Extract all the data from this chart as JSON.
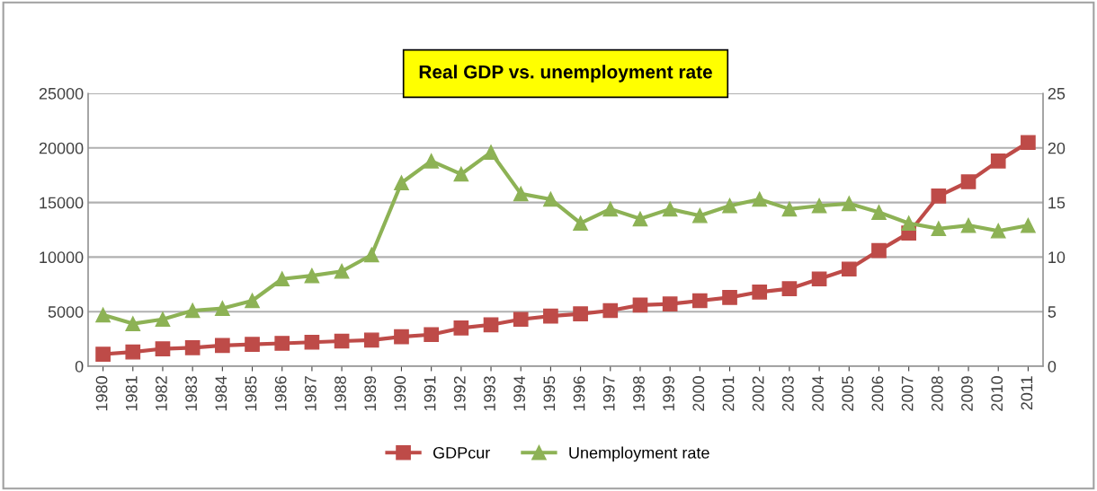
{
  "chart_data": {
    "type": "line",
    "title": "Real GDP vs. unemployment rate",
    "categories": [
      "1980",
      "1981",
      "1982",
      "1983",
      "1984",
      "1985",
      "1986",
      "1987",
      "1988",
      "1989",
      "1990",
      "1991",
      "1992",
      "1993",
      "1994",
      "1995",
      "1996",
      "1997",
      "1998",
      "1999",
      "2000",
      "2001",
      "2002",
      "2003",
      "2004",
      "2005",
      "2006",
      "2007",
      "2008",
      "2009",
      "2010",
      "2011"
    ],
    "series": [
      {
        "name": "GDPcur",
        "color": "#be4b48",
        "marker": "square",
        "values": [
          1100,
          1300,
          1600,
          1700,
          1900,
          2000,
          2100,
          2200,
          2300,
          2400,
          2700,
          2900,
          3500,
          3800,
          4300,
          4600,
          4800,
          5100,
          5600,
          5700,
          6000,
          6300,
          6800,
          7100,
          8000,
          8900,
          10600,
          12200,
          15600,
          16900,
          18800,
          20500
        ]
      },
      {
        "name": "Unemployment rate",
        "color": "#8db255",
        "marker": "triangle",
        "axis": "y2",
        "values": [
          4.7,
          3.9,
          4.3,
          5.1,
          5.3,
          6.0,
          8.0,
          8.3,
          8.7,
          10.2,
          16.8,
          18.8,
          17.6,
          19.6,
          15.8,
          15.3,
          13.1,
          14.4,
          13.5,
          14.4,
          13.8,
          14.7,
          15.3,
          14.4,
          14.7,
          14.9,
          14.1,
          13.1,
          12.6,
          12.9,
          12.4,
          12.9
        ]
      }
    ],
    "ylim": [
      0,
      25000
    ],
    "yticks": [
      0,
      5000,
      10000,
      15000,
      20000,
      25000
    ],
    "y2lim": [
      0,
      25
    ],
    "y2ticks": [
      0,
      5,
      10,
      15,
      20,
      25
    ],
    "grid": "y",
    "legend": "bottom"
  }
}
